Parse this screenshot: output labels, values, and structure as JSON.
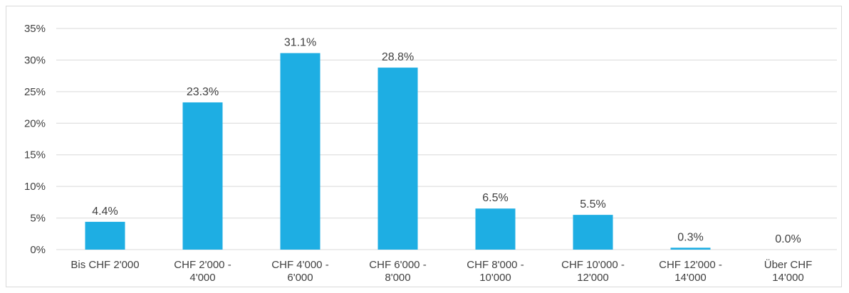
{
  "chart_data": {
    "type": "bar",
    "categories": [
      [
        "Bis CHF 2'000"
      ],
      [
        "CHF 2'000 -",
        "4'000"
      ],
      [
        "CHF 4'000 -",
        "6'000"
      ],
      [
        "CHF 6'000 -",
        "8'000"
      ],
      [
        "CHF 8'000 -",
        "10'000"
      ],
      [
        "CHF 10'000 -",
        "12'000"
      ],
      [
        "CHF 12'000 -",
        "14'000"
      ],
      [
        "Über CHF",
        "14'000"
      ]
    ],
    "values": [
      4.4,
      23.3,
      31.1,
      28.8,
      6.5,
      5.5,
      0.3,
      0.0
    ],
    "data_labels": [
      "4.4%",
      "23.3%",
      "31.1%",
      "28.8%",
      "6.5%",
      "5.5%",
      "0.3%",
      "0.0%"
    ],
    "y_ticks": [
      "0%",
      "5%",
      "10%",
      "15%",
      "20%",
      "25%",
      "30%",
      "35%"
    ],
    "ylim": [
      0,
      35
    ],
    "y_step": 5,
    "grid": true,
    "legend": "none",
    "bar_color": "#1eaee3",
    "grid_color": "#d9d9d9",
    "title": "",
    "xlabel": "",
    "ylabel": ""
  }
}
